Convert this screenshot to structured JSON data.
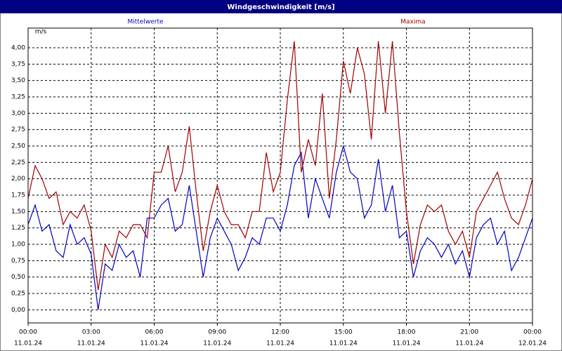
{
  "chart_data": {
    "type": "line",
    "title": "Windgeschwindigkeit [m/s]",
    "y_label": "m/s",
    "x": [
      0,
      0.3333,
      0.6667,
      1,
      1.3333,
      1.6667,
      2,
      2.3333,
      2.6667,
      3,
      3.3333,
      3.6667,
      4,
      4.3333,
      4.6667,
      5,
      5.3333,
      5.6667,
      6,
      6.3333,
      6.6667,
      7,
      7.3333,
      7.6667,
      8,
      8.3333,
      8.6667,
      9,
      9.3333,
      9.6667,
      10,
      10.3333,
      10.6667,
      11,
      11.3333,
      11.6667,
      12,
      12.3333,
      12.6667,
      13,
      13.3333,
      13.6667,
      14,
      14.3333,
      14.6667,
      15,
      15.3333,
      15.6667,
      16,
      16.3333,
      16.6667,
      17,
      17.3333,
      17.6667,
      18,
      18.3333,
      18.6667,
      19,
      19.3333,
      19.6667,
      20,
      20.3333,
      20.6667,
      21,
      21.3333,
      21.6667,
      22,
      22.3333,
      22.6667,
      23,
      23.3333,
      23.6667,
      24
    ],
    "series": [
      {
        "name": "Mittelwerte",
        "color": "#0000c0",
        "values": [
          1.3,
          1.6,
          1.2,
          1.3,
          0.9,
          0.8,
          1.3,
          1.0,
          1.1,
          0.85,
          0.0,
          0.7,
          0.6,
          1.0,
          0.8,
          0.9,
          0.5,
          1.4,
          1.4,
          1.6,
          1.7,
          1.2,
          1.3,
          1.9,
          1.2,
          0.5,
          1.1,
          1.4,
          1.2,
          1.0,
          0.6,
          0.8,
          1.1,
          1.0,
          1.4,
          1.4,
          1.2,
          1.6,
          2.2,
          2.4,
          1.4,
          2.0,
          1.7,
          1.4,
          2.1,
          2.5,
          2.1,
          2.0,
          1.4,
          1.6,
          2.3,
          1.5,
          1.9,
          1.1,
          1.2,
          0.5,
          0.9,
          1.1,
          1.0,
          0.8,
          1.0,
          0.7,
          0.9,
          0.5,
          1.1,
          1.3,
          1.4,
          1.0,
          1.2,
          0.6,
          0.8,
          1.1,
          1.4
        ]
      },
      {
        "name": "Maxima",
        "color": "#a00000",
        "values": [
          1.7,
          2.2,
          2.0,
          1.7,
          1.8,
          1.3,
          1.5,
          1.4,
          1.6,
          1.2,
          0.3,
          1.0,
          0.8,
          1.2,
          1.1,
          1.3,
          1.3,
          1.1,
          2.1,
          2.1,
          2.5,
          1.8,
          2.1,
          2.8,
          1.8,
          0.9,
          1.5,
          1.9,
          1.5,
          1.3,
          1.3,
          1.1,
          1.5,
          1.5,
          2.4,
          1.8,
          2.1,
          3.2,
          4.1,
          2.1,
          2.6,
          2.2,
          3.3,
          1.7,
          2.6,
          3.8,
          3.3,
          4.0,
          3.6,
          2.6,
          4.1,
          3.0,
          4.1,
          2.7,
          1.5,
          0.7,
          1.3,
          1.6,
          1.5,
          1.6,
          1.2,
          1.0,
          1.2,
          0.8,
          1.5,
          1.7,
          1.9,
          2.1,
          1.7,
          1.4,
          1.3,
          1.6,
          2.0
        ]
      }
    ],
    "xlim": [
      0,
      24
    ],
    "xticks": [
      {
        "value": 0,
        "label": [
          "00:00",
          "11.01.24"
        ]
      },
      {
        "value": 3,
        "label": [
          "03:00",
          "11.01.24"
        ]
      },
      {
        "value": 6,
        "label": [
          "06:00",
          "11.01.24"
        ]
      },
      {
        "value": 9,
        "label": [
          "09:00",
          "11.01.24"
        ]
      },
      {
        "value": 12,
        "label": [
          "12:00",
          "11.01.24"
        ]
      },
      {
        "value": 15,
        "label": [
          "15:00",
          "11.01.24"
        ]
      },
      {
        "value": 18,
        "label": [
          "18:00",
          "11.01.24"
        ]
      },
      {
        "value": 21,
        "label": [
          "21:00",
          "11.01.24"
        ]
      },
      {
        "value": 24,
        "label": [
          "00:00",
          "12.01.24"
        ]
      }
    ],
    "ylim": [
      -0.2,
      4.3
    ],
    "yticks": [
      {
        "value": 0,
        "label": "0,00"
      },
      {
        "value": 0.25,
        "label": "0,25"
      },
      {
        "value": 0.5,
        "label": "0,50"
      },
      {
        "value": 0.75,
        "label": "0,75"
      },
      {
        "value": 1,
        "label": "1,00"
      },
      {
        "value": 1.25,
        "label": "1,25"
      },
      {
        "value": 1.5,
        "label": "1,50"
      },
      {
        "value": 1.75,
        "label": "1,75"
      },
      {
        "value": 2,
        "label": "2,00"
      },
      {
        "value": 2.25,
        "label": "2,25"
      },
      {
        "value": 2.5,
        "label": "2,50"
      },
      {
        "value": 2.75,
        "label": "2,75"
      },
      {
        "value": 3,
        "label": "3,00"
      },
      {
        "value": 3.25,
        "label": "3,25"
      },
      {
        "value": 3.5,
        "label": "3,50"
      },
      {
        "value": 3.75,
        "label": "3,75"
      },
      {
        "value": 4,
        "label": "4,00"
      }
    ],
    "grid": true
  }
}
